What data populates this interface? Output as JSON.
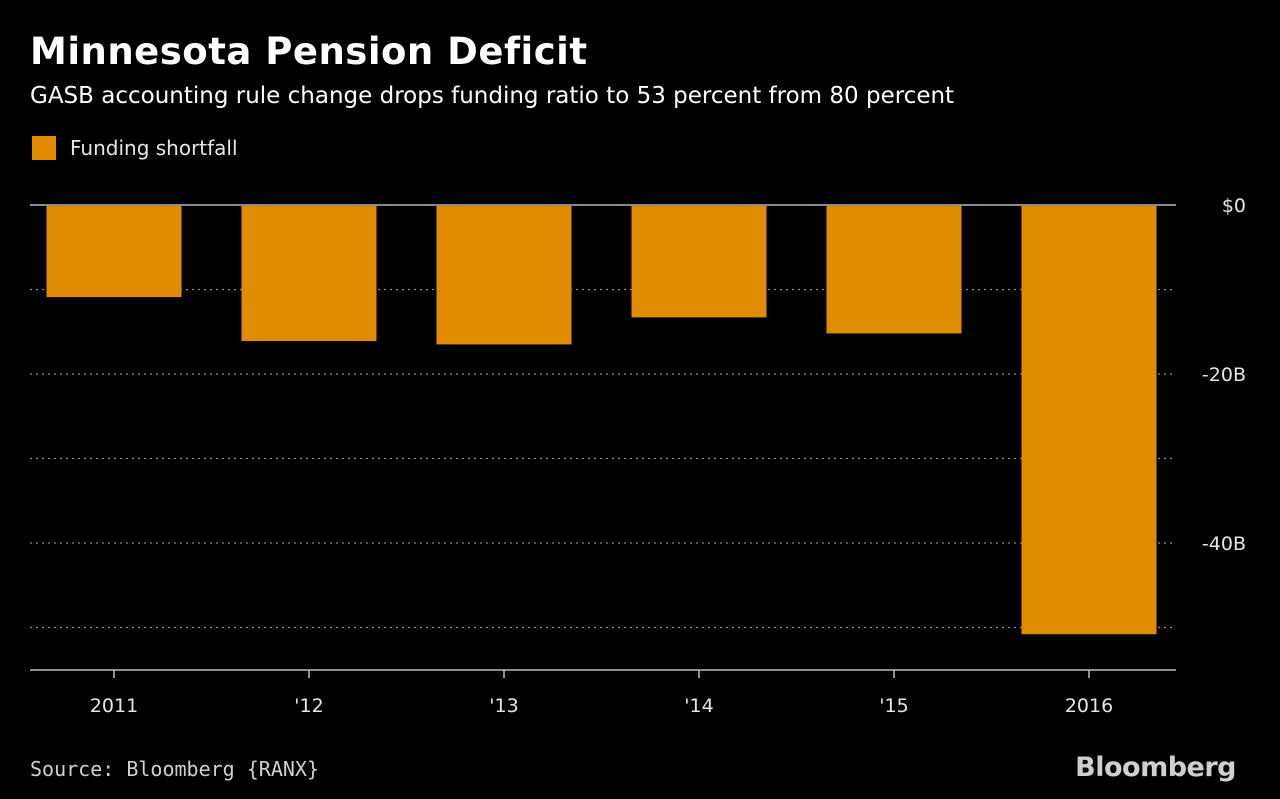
{
  "header": {
    "title": "Minnesota Pension Deficit",
    "subtitle": "GASB accounting rule change drops funding ratio to 53 percent from 80 percent"
  },
  "legend": {
    "label": "Funding shortfall"
  },
  "footer": {
    "source": "Source: Bloomberg {RANX}",
    "brand": "Bloomberg"
  },
  "colors": {
    "background": "#000000",
    "bar": "#e08b00",
    "zero_line": "#8a8a8a",
    "grid": "#8a8a8a",
    "axis": "#bdbdbd"
  },
  "chart_data": {
    "type": "bar",
    "title": "Minnesota Pension Deficit",
    "subtitle": "GASB accounting rule change drops funding ratio to 53 percent from 80 percent",
    "categories": [
      "2011",
      "'12",
      "'13",
      "'14",
      "'15",
      "2016"
    ],
    "series": [
      {
        "name": "Funding shortfall",
        "unit": "billion USD",
        "values": [
          -10.9,
          -16.1,
          -16.5,
          -13.3,
          -15.2,
          -50.8
        ]
      }
    ],
    "xlabel": "",
    "ylabel": "",
    "ylim": [
      -55,
      0
    ],
    "yticks": [
      0,
      -10,
      -20,
      -30,
      -40,
      -50
    ],
    "ytick_labels": {
      "0": "$0",
      "-20": "-20B",
      "-40": "-40B"
    },
    "grid": true,
    "legend_position": "top-left"
  }
}
